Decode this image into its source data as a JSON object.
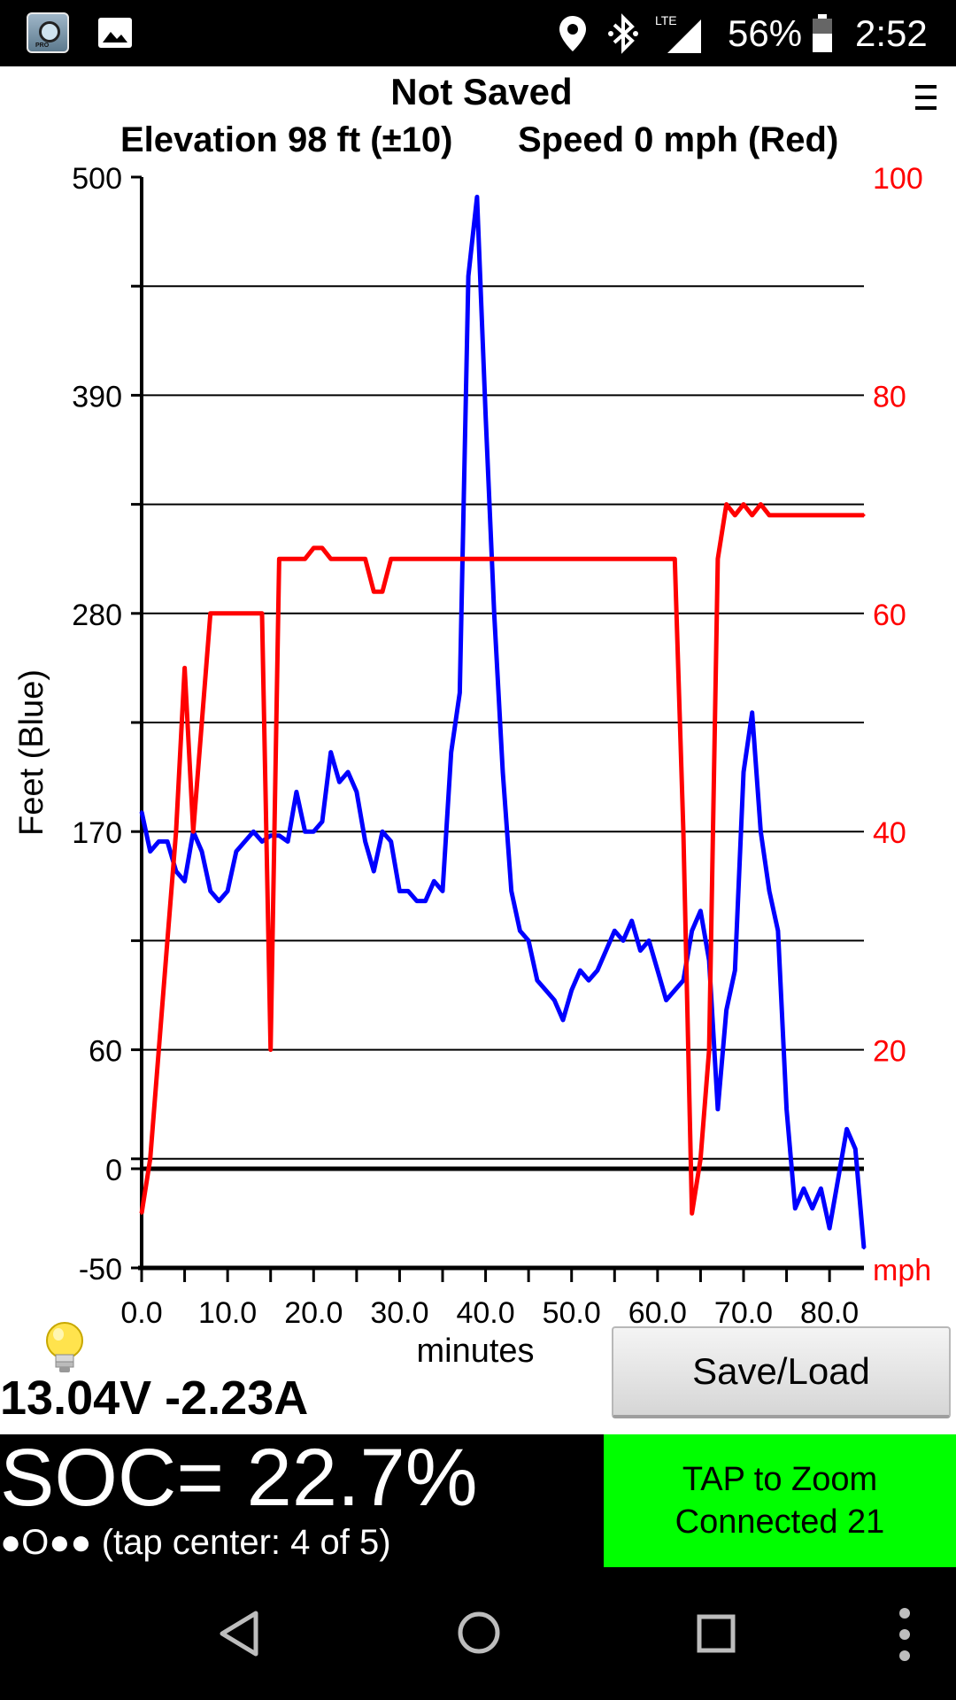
{
  "status_bar": {
    "battery_percent": "56%",
    "clock": "2:52",
    "network": "LTE",
    "icons": [
      "app-icon",
      "image-icon",
      "location-icon",
      "bluetooth-icon",
      "lte-signal-icon",
      "battery-icon"
    ]
  },
  "header": {
    "title": "Not Saved",
    "elevation_label": "Elevation 98 ft (±10)",
    "speed_label": "Speed 0 mph (Red)"
  },
  "chart_data": {
    "type": "line",
    "xlabel": "minutes",
    "ylabel_left": "Feet   (Blue)",
    "ylabel_right_unit": "mph",
    "xlim": [
      0,
      84
    ],
    "x_ticks": [
      "0.0",
      "10.0",
      "20.0",
      "30.0",
      "40.0",
      "50.0",
      "60.0",
      "70.0",
      "80.0"
    ],
    "left_axis": {
      "ylim": [
        -50,
        500
      ],
      "ticks": [
        "500",
        "390",
        "280",
        "170",
        "60",
        "0",
        "-50"
      ],
      "tick_values": [
        500,
        390,
        280,
        170,
        60,
        0,
        -50
      ]
    },
    "right_axis": {
      "ylim": [
        0,
        100
      ],
      "ticks": [
        "100",
        "80",
        "60",
        "40",
        "20"
      ],
      "tick_values": [
        100,
        80,
        60,
        40,
        20
      ]
    },
    "grid": true,
    "series": [
      {
        "color": "#0000ff",
        "axis": "left",
        "x": [
          0,
          1,
          2,
          3,
          4,
          5,
          6,
          7,
          8,
          9,
          10,
          11,
          12,
          13,
          14,
          15,
          16,
          17,
          18,
          19,
          20,
          21,
          22,
          23,
          24,
          25,
          26,
          27,
          28,
          29,
          30,
          31,
          32,
          33,
          34,
          35,
          36,
          37,
          38,
          39,
          40,
          41,
          42,
          43,
          44,
          45,
          46,
          47,
          48,
          49,
          50,
          51,
          52,
          53,
          54,
          55,
          56,
          57,
          58,
          59,
          60,
          61,
          62,
          63,
          64,
          65,
          66,
          67,
          68,
          69,
          70,
          71,
          72,
          73,
          74,
          75,
          76,
          77,
          78,
          79,
          80,
          81,
          82,
          83,
          84
        ],
        "values": [
          180,
          160,
          165,
          165,
          150,
          145,
          170,
          160,
          140,
          135,
          140,
          160,
          165,
          170,
          165,
          168,
          168,
          165,
          190,
          170,
          170,
          175,
          210,
          195,
          200,
          190,
          165,
          150,
          170,
          165,
          140,
          140,
          135,
          135,
          145,
          140,
          210,
          240,
          450,
          490,
          380,
          280,
          200,
          140,
          120,
          115,
          95,
          90,
          85,
          75,
          90,
          100,
          95,
          100,
          110,
          120,
          115,
          125,
          110,
          115,
          100,
          85,
          90,
          95,
          120,
          130,
          105,
          30,
          80,
          100,
          200,
          230,
          170,
          140,
          120,
          30,
          -20,
          -10,
          -20,
          -10,
          -30,
          -5,
          20,
          10,
          -40
        ],
        "_note": ""
      },
      {
        "color": "#ff0000",
        "axis": "right",
        "x": [
          0,
          1,
          2,
          3,
          4,
          5,
          6,
          7,
          8,
          9,
          10,
          11,
          12,
          13,
          14,
          15,
          16,
          17,
          18,
          19,
          20,
          21,
          22,
          23,
          24,
          25,
          26,
          27,
          28,
          29,
          30,
          31,
          32,
          33,
          34,
          35,
          36,
          37,
          38,
          39,
          40,
          41,
          42,
          43,
          44,
          45,
          46,
          47,
          48,
          49,
          50,
          51,
          52,
          53,
          54,
          55,
          56,
          57,
          58,
          59,
          60,
          61,
          62,
          63,
          64,
          65,
          66,
          67,
          68,
          69,
          70,
          71,
          72,
          73,
          74,
          75,
          76,
          77,
          78,
          79,
          80,
          81,
          82,
          83,
          84
        ],
        "values": [
          5,
          10,
          20,
          30,
          40,
          55,
          40,
          50,
          60,
          60,
          60,
          60,
          60,
          60,
          60,
          20,
          65,
          65,
          65,
          65,
          66,
          66,
          65,
          65,
          65,
          65,
          65,
          62,
          62,
          65,
          65,
          65,
          65,
          65,
          65,
          65,
          65,
          65,
          65,
          65,
          65,
          65,
          65,
          65,
          65,
          65,
          65,
          65,
          65,
          65,
          65,
          65,
          65,
          65,
          65,
          65,
          65,
          65,
          65,
          65,
          65,
          65,
          65,
          40,
          5,
          10,
          20,
          65,
          70,
          69,
          70,
          69,
          70,
          69,
          69,
          69,
          69,
          69,
          69,
          69,
          69,
          69,
          69,
          69,
          69
        ]
      }
    ]
  },
  "readouts": {
    "voltage_current": "13.04V -2.23A",
    "soc": "SOC= 22.7%",
    "tap_center": "●O●● (tap center: 4 of 5)"
  },
  "buttons": {
    "save_load": "Save/Load",
    "zoom_line1": "TAP to Zoom",
    "zoom_line2": "Connected 21"
  },
  "colors": {
    "elevation_series": "#0000ff",
    "speed_series": "#ff0000",
    "zoom_panel": "#00ff00",
    "right_axis_text": "#ff0000"
  }
}
